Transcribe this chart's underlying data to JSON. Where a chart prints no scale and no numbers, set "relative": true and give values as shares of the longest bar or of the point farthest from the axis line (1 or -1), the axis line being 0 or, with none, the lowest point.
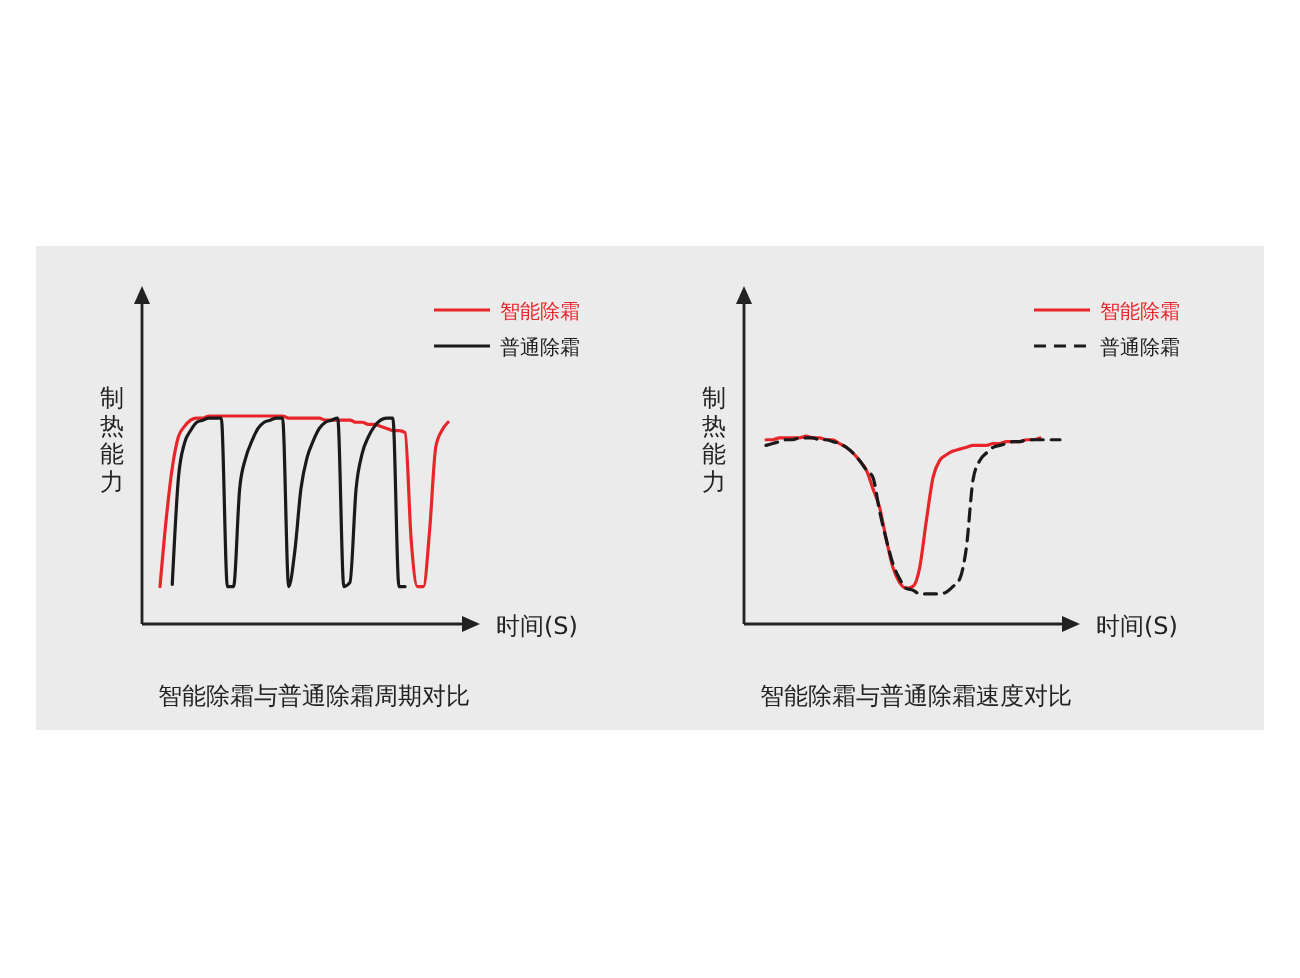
{
  "chart_data": [
    {
      "type": "line",
      "title": "智能除霜与普通除霜周期对比",
      "xlabel": "时间(S)",
      "ylabel": "制热能力",
      "relative": true,
      "legend": "top right",
      "categories": [
        null,
        null,
        null,
        null,
        null,
        null,
        null,
        null,
        null,
        null,
        null,
        null,
        null,
        null,
        null,
        null,
        null,
        null,
        null,
        null,
        null,
        null,
        null,
        null,
        null,
        null,
        null,
        null,
        null,
        null,
        null,
        null,
        null,
        null,
        null,
        null,
        null,
        null,
        null,
        null,
        null,
        null,
        null,
        null,
        null,
        null,
        null,
        null
      ],
      "series": [
        {
          "name": "智能除霜",
          "color": "#e8262a",
          "line_style": "solid",
          "values": [
            0.18,
            0.5,
            0.75,
            0.9,
            0.95,
            0.98,
            0.99,
            0.99,
            1,
            1,
            1,
            1,
            1,
            1,
            1,
            1,
            1,
            1,
            1,
            1,
            1,
            0.99,
            0.99,
            0.99,
            0.99,
            0.99,
            0.99,
            0.98,
            0.98,
            0.98,
            0.98,
            0.98,
            0.97,
            0.97,
            0.96,
            0.96,
            0.95,
            0.94,
            0.93,
            0.93,
            0.92,
            0.4,
            0.18,
            0.18,
            0.45,
            0.85,
            0.93,
            0.97
          ]
        },
        {
          "name": "普通除霜",
          "color": "#1a1a1a",
          "line_style": "solid",
          "values": [
            null,
            null,
            0.19,
            0.7,
            0.87,
            0.93,
            0.97,
            0.98,
            0.99,
            0.99,
            0.99,
            0.18,
            0.18,
            0.65,
            0.8,
            0.88,
            0.94,
            0.97,
            0.98,
            0.99,
            0.99,
            0.18,
            0.35,
            0.65,
            0.8,
            0.88,
            0.94,
            0.97,
            0.98,
            0.99,
            0.18,
            0.2,
            0.65,
            0.82,
            0.9,
            0.95,
            0.98,
            0.99,
            0.99,
            0.18,
            0.18,
            null,
            null,
            null,
            null,
            null,
            null,
            null
          ]
        }
      ]
    },
    {
      "type": "line",
      "title": "智能除霜与普通除霜速度对比",
      "xlabel": "时间(S)",
      "ylabel": "制热能力",
      "relative": true,
      "legend": "top right",
      "categories": [
        null,
        null,
        null,
        null,
        null,
        null,
        null,
        null,
        null,
        null,
        null,
        null,
        null,
        null,
        null,
        null,
        null,
        null,
        null,
        null,
        null,
        null,
        null,
        null,
        null,
        null,
        null,
        null,
        null,
        null,
        null,
        null,
        null,
        null,
        null,
        null,
        null,
        null,
        null,
        null,
        null,
        null,
        null,
        null,
        null
      ],
      "series": [
        {
          "name": "智能除霜",
          "color": "#e8262a",
          "line_style": "solid",
          "values": [
            0.98,
            0.98,
            0.99,
            0.99,
            0.99,
            0.99,
            1,
            0.99,
            0.99,
            0.98,
            0.98,
            0.96,
            0.94,
            0.91,
            0.87,
            0.82,
            0.72,
            0.62,
            0.45,
            0.3,
            0.22,
            0.19,
            0.2,
            0.3,
            0.55,
            0.78,
            0.87,
            0.9,
            0.92,
            0.93,
            0.94,
            0.95,
            0.95,
            0.95,
            0.96,
            0.96,
            0.97,
            0.97,
            0.97,
            0.98,
            0.98,
            0.99,
            null,
            null,
            null
          ]
        },
        {
          "name": "普通除霜",
          "color": "#1a1a1a",
          "line_style": "dashed",
          "values": [
            0.95,
            0.96,
            0.97,
            0.98,
            0.98,
            0.99,
            0.99,
            0.99,
            0.98,
            0.98,
            0.97,
            0.96,
            0.94,
            0.91,
            0.87,
            0.82,
            0.78,
            0.6,
            0.45,
            0.32,
            0.24,
            0.19,
            0.18,
            0.16,
            0.16,
            0.16,
            0.16,
            0.17,
            0.2,
            0.24,
            0.41,
            0.77,
            0.87,
            0.91,
            0.94,
            0.95,
            0.96,
            0.97,
            0.97,
            0.98,
            0.98,
            0.98,
            0.98,
            0.98,
            0.98
          ]
        }
      ]
    }
  ]
}
